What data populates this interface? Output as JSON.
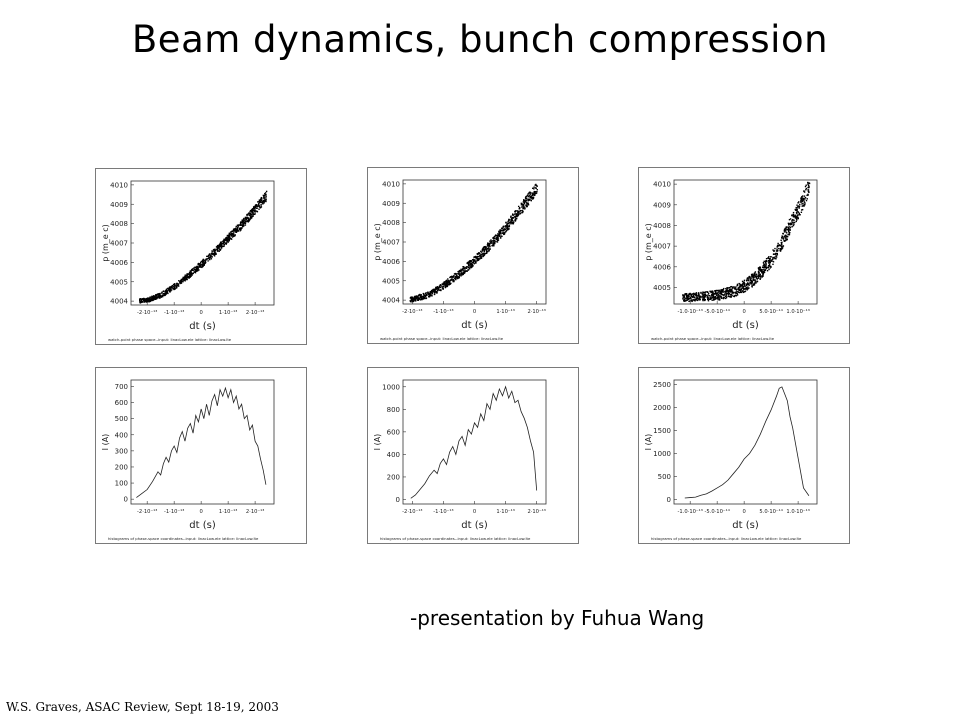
{
  "slide": {
    "title": "Beam dynamics, bunch compression",
    "presenter": "-presentation by Fuhua Wang",
    "footer": "W.S. Graves, ASAC Review, Sept 18-19, 2003"
  },
  "chart_data": [
    {
      "type": "scatter",
      "xlabel": "dt (s)",
      "ylabel": "p (m_e c)",
      "caption": "watch-point phase space--input: linacLow.ele lattice: linacLow.lte",
      "xlim": [
        -2.6e-13,
        2.7e-13
      ],
      "ylim": [
        4003.8,
        4010.2
      ],
      "xticks": [
        -2e-13,
        -1e-13,
        0,
        1e-13,
        2e-13
      ],
      "xtick_labels": [
        "-2·10⁻¹³",
        "-1·10⁻¹³",
        "0",
        "1·10⁻¹³",
        "2·10⁻¹³"
      ],
      "yticks": [
        4004,
        4005,
        4006,
        4007,
        4008,
        4009,
        4010
      ],
      "ytick_labels": [
        "4004",
        "4005",
        "4006",
        "4007",
        "4008",
        "4009",
        "4010"
      ],
      "x": [
        -2.3e-13,
        -2e-13,
        -1.5e-13,
        -1e-13,
        -5e-14,
        0,
        5e-14,
        1e-13,
        1.5e-13,
        2e-13,
        2.4e-13
      ],
      "y": [
        4004.05,
        4004.1,
        4004.35,
        4004.8,
        4005.35,
        4005.95,
        4006.6,
        4007.3,
        4008.0,
        4008.8,
        4009.45
      ],
      "spread": 0.18
    },
    {
      "type": "scatter",
      "xlabel": "dt (s)",
      "ylabel": "p (m_e c)",
      "caption": "watch-point phase space--input: linacLow.ele lattice: linacLow.lte",
      "xlim": [
        -2.3e-13,
        2.3e-13
      ],
      "ylim": [
        4003.8,
        4010.2
      ],
      "xticks": [
        -2e-13,
        -1e-13,
        0,
        1e-13,
        2e-13
      ],
      "xtick_labels": [
        "-2·10⁻¹³",
        "-1·10⁻¹³",
        "0",
        "1·10⁻¹³",
        "2·10⁻¹³"
      ],
      "yticks": [
        4004,
        4005,
        4006,
        4007,
        4008,
        4009,
        4010
      ],
      "ytick_labels": [
        "4004",
        "4005",
        "4006",
        "4007",
        "4008",
        "4009",
        "4010"
      ],
      "x": [
        -2.1e-13,
        -1.5e-13,
        -1e-13,
        -5e-14,
        0,
        5e-14,
        1e-13,
        1.5e-13,
        2e-13
      ],
      "y": [
        4004.05,
        4004.3,
        4004.8,
        4005.4,
        4006.1,
        4006.9,
        4007.8,
        4008.8,
        4009.85
      ],
      "spread": 0.22
    },
    {
      "type": "scatter",
      "xlabel": "dt (s)",
      "ylabel": "p (m_e c)",
      "caption": "watch-point phase space--input: linacLow.ele lattice: linacLow.lte",
      "xlim": [
        -1.3e-13,
        1.35e-13
      ],
      "ylim": [
        4004.2,
        4010.2
      ],
      "xticks": [
        -1e-13,
        -5e-14,
        0,
        5e-14,
        1e-13
      ],
      "xtick_labels": [
        "-1.0·10⁻¹³",
        "-5.0·10⁻¹⁴",
        "0",
        "5.0·10⁻¹⁴",
        "1.0·10⁻¹³"
      ],
      "yticks": [
        4005,
        4006,
        4007,
        4008,
        4009,
        4010
      ],
      "ytick_labels": [
        "4005",
        "4006",
        "4007",
        "4008",
        "4009",
        "4010"
      ],
      "x": [
        -1.15e-13,
        -1e-13,
        -5e-14,
        -2e-14,
        0,
        2e-14,
        5e-14,
        7e-14,
        1e-13,
        1.2e-13
      ],
      "y": [
        4004.55,
        4004.55,
        4004.65,
        4004.85,
        4005.1,
        4005.5,
        4006.4,
        4007.3,
        4008.8,
        4009.95
      ],
      "spread": 0.3
    },
    {
      "type": "line",
      "xlabel": "dt (s)",
      "ylabel": "I (A)",
      "caption": "histograms of phase-space coordinates--input: linacLow.ele lattice: linacLow.lte",
      "xlim": [
        -2.6e-13,
        2.7e-13
      ],
      "ylim": [
        -30,
        740
      ],
      "xticks": [
        -2e-13,
        -1e-13,
        0,
        1e-13,
        2e-13
      ],
      "xtick_labels": [
        "-2·10⁻¹³",
        "-1·10⁻¹³",
        "0",
        "1·10⁻¹³",
        "2·10⁻¹³"
      ],
      "yticks": [
        0,
        100,
        200,
        300,
        400,
        500,
        600,
        700
      ],
      "ytick_labels": [
        "0",
        "100",
        "200",
        "300",
        "400",
        "500",
        "600",
        "700"
      ],
      "x": [
        -2.4e-13,
        -2.2e-13,
        -2e-13,
        -1.8e-13,
        -1.6e-13,
        -1.5e-13,
        -1.4e-13,
        -1.3e-13,
        -1.2e-13,
        -1.1e-13,
        -1e-13,
        -9e-14,
        -8e-14,
        -7e-14,
        -6e-14,
        -5e-14,
        -4e-14,
        -3e-14,
        -2e-14,
        -1e-14,
        0,
        1e-14,
        2e-14,
        3e-14,
        4e-14,
        5e-14,
        6e-14,
        7e-14,
        8e-14,
        9e-14,
        1e-13,
        1.1e-13,
        1.2e-13,
        1.3e-13,
        1.4e-13,
        1.5e-13,
        1.6e-13,
        1.7e-13,
        1.8e-13,
        1.9e-13,
        2e-13,
        2.1e-13,
        2.2e-13,
        2.3e-13,
        2.4e-13
      ],
      "y": [
        10,
        35,
        60,
        110,
        170,
        150,
        220,
        260,
        230,
        300,
        330,
        290,
        380,
        420,
        360,
        440,
        470,
        410,
        520,
        480,
        560,
        500,
        590,
        520,
        610,
        650,
        580,
        680,
        640,
        690,
        630,
        680,
        600,
        640,
        560,
        590,
        500,
        520,
        430,
        460,
        360,
        330,
        250,
        180,
        90
      ]
    },
    {
      "type": "line",
      "xlabel": "dt (s)",
      "ylabel": "I (A)",
      "caption": "histograms of phase-space coordinates--input: linacLow.ele lattice: linacLow.lte",
      "xlim": [
        -2.3e-13,
        2.3e-13
      ],
      "ylim": [
        -40,
        1060
      ],
      "xticks": [
        -2e-13,
        -1e-13,
        0,
        1e-13,
        2e-13
      ],
      "xtick_labels": [
        "-2·10⁻¹³",
        "-1·10⁻¹³",
        "0",
        "1·10⁻¹³",
        "2·10⁻¹³"
      ],
      "yticks": [
        0,
        200,
        400,
        600,
        800,
        1000
      ],
      "ytick_labels": [
        "0",
        "200",
        "400",
        "600",
        "800",
        "1000"
      ],
      "x": [
        -2.05e-13,
        -1.9e-13,
        -1.75e-13,
        -1.6e-13,
        -1.45e-13,
        -1.3e-13,
        -1.2e-13,
        -1.1e-13,
        -1e-13,
        -9e-14,
        -8e-14,
        -7e-14,
        -6e-14,
        -5e-14,
        -4e-14,
        -3e-14,
        -2e-14,
        -1e-14,
        0,
        1e-14,
        2e-14,
        3e-14,
        4e-14,
        5e-14,
        6e-14,
        7e-14,
        8e-14,
        9e-14,
        1e-13,
        1.1e-13,
        1.2e-13,
        1.3e-13,
        1.4e-13,
        1.5e-13,
        1.6e-13,
        1.7e-13,
        1.8e-13,
        1.9e-13,
        2e-13
      ],
      "y": [
        10,
        40,
        90,
        140,
        210,
        260,
        230,
        320,
        360,
        310,
        420,
        470,
        400,
        520,
        560,
        480,
        620,
        580,
        680,
        640,
        760,
        700,
        850,
        800,
        940,
        880,
        980,
        920,
        1000,
        900,
        960,
        860,
        880,
        780,
        720,
        640,
        520,
        420,
        80
      ]
    },
    {
      "type": "line",
      "xlabel": "dt (s)",
      "ylabel": "I (A)",
      "caption": "histograms of phase-space coordinates--input: linacLow.ele lattice: linacLow.lte",
      "xlim": [
        -1.3e-13,
        1.35e-13
      ],
      "ylim": [
        -100,
        2600
      ],
      "xticks": [
        -1e-13,
        -5e-14,
        0,
        5e-14,
        1e-13
      ],
      "xtick_labels": [
        "-1.0·10⁻¹³",
        "-5.0·10⁻¹⁴",
        "0",
        "5.0·10⁻¹⁴",
        "1.0·10⁻¹³"
      ],
      "yticks": [
        0,
        500,
        1000,
        1500,
        2000,
        2500
      ],
      "ytick_labels": [
        "0",
        "500",
        "1000",
        "1500",
        "2000",
        "2500"
      ],
      "x": [
        -1.1e-13,
        -1e-13,
        -9e-14,
        -8e-14,
        -7e-14,
        -6e-14,
        -5e-14,
        -4e-14,
        -3e-14,
        -2e-14,
        -1e-14,
        0,
        1e-14,
        2e-14,
        3e-14,
        4e-14,
        5e-14,
        6e-14,
        6.5e-14,
        7e-14,
        7.5e-14,
        8e-14,
        8.5e-14,
        9e-14,
        1e-13,
        1.1e-13,
        1.2e-13
      ],
      "y": [
        30,
        40,
        50,
        90,
        120,
        180,
        250,
        320,
        420,
        560,
        700,
        880,
        1000,
        1180,
        1420,
        1700,
        1950,
        2250,
        2420,
        2450,
        2300,
        2150,
        1800,
        1550,
        900,
        250,
        80
      ]
    }
  ]
}
